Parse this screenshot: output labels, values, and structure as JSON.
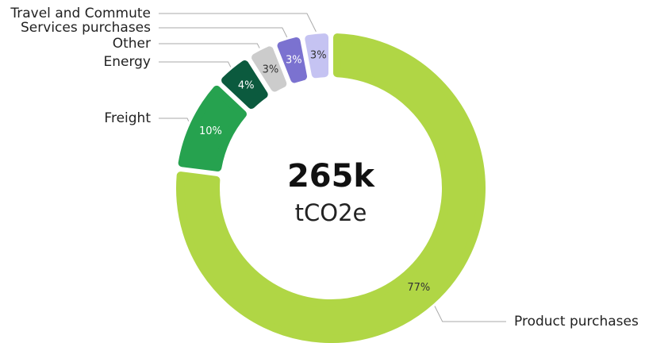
{
  "chart_data": {
    "type": "donut",
    "center_value": "265k",
    "center_unit": "tCO2e",
    "categories": [
      "Product purchases",
      "Freight",
      "Energy",
      "Other",
      "Services purchases",
      "Travel and Commute"
    ],
    "values": [
      77,
      10,
      4,
      3,
      3,
      3
    ],
    "value_labels": [
      "77%",
      "10%",
      "4%",
      "3%",
      "3%",
      "3%"
    ],
    "colors": [
      "#b0d645",
      "#26a24f",
      "#0b5a3e",
      "#cccccc",
      "#7b72d0",
      "#c5c3f2"
    ]
  }
}
